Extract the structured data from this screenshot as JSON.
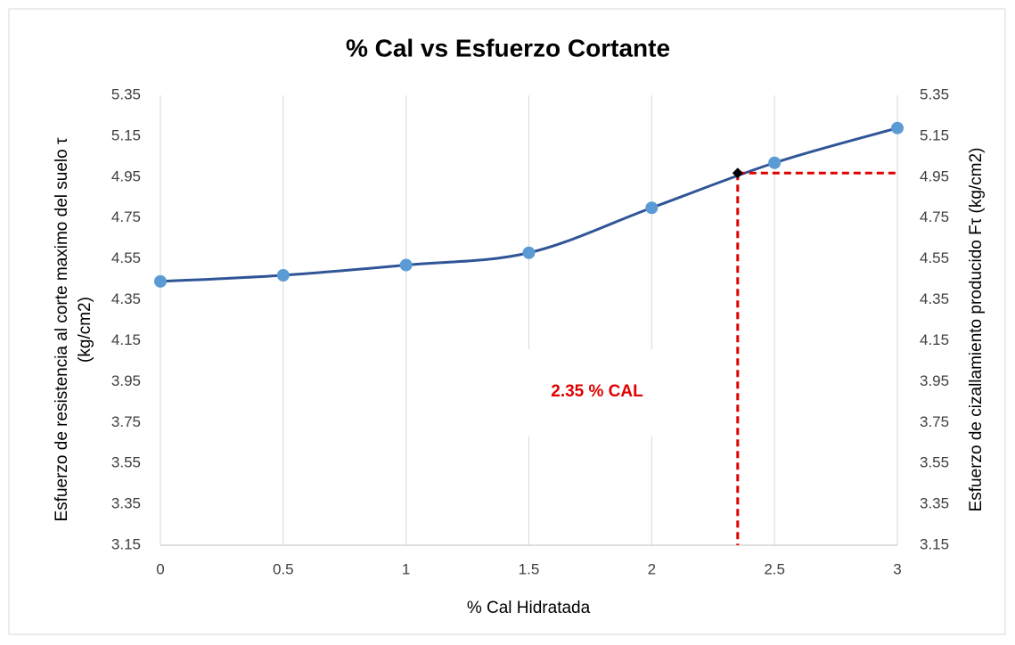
{
  "chart_data": {
    "type": "line",
    "title": "% Cal vs Esfuerzo Cortante",
    "xlabel": "% Cal Hidratada",
    "ylabel": [
      "Esfuerzo de resistencia al corte maximo del suelo τ",
      "(kg/cm2)"
    ],
    "y2label": "Esfuerzo de cizallamiento producido  Fτ (kg/cm2)",
    "x": [
      0,
      0.5,
      1,
      1.5,
      2,
      2.5,
      3
    ],
    "series": [
      {
        "color": "#2f5597",
        "marker_color": "#5b9bd5",
        "values": [
          4.44,
          4.47,
          4.52,
          4.58,
          4.8,
          5.02,
          5.19
        ]
      }
    ],
    "xlim": [
      0,
      3
    ],
    "xticks": [
      0,
      0.5,
      1,
      1.5,
      2,
      2.5,
      3
    ],
    "ylim": [
      3.15,
      5.35
    ],
    "yticks": [
      3.15,
      3.35,
      3.55,
      3.75,
      3.95,
      4.15,
      4.35,
      4.55,
      4.75,
      4.95,
      5.15,
      5.35
    ],
    "y2lim": [
      3.15,
      5.35
    ],
    "y2ticks": [
      3.15,
      3.35,
      3.55,
      3.75,
      3.95,
      4.15,
      4.35,
      4.55,
      4.75,
      4.95,
      5.15,
      5.35
    ],
    "grid": "x",
    "highlight": {
      "x": 2.35,
      "y": 4.97,
      "label": "2.35 % CAL",
      "color": "#e00000"
    }
  }
}
